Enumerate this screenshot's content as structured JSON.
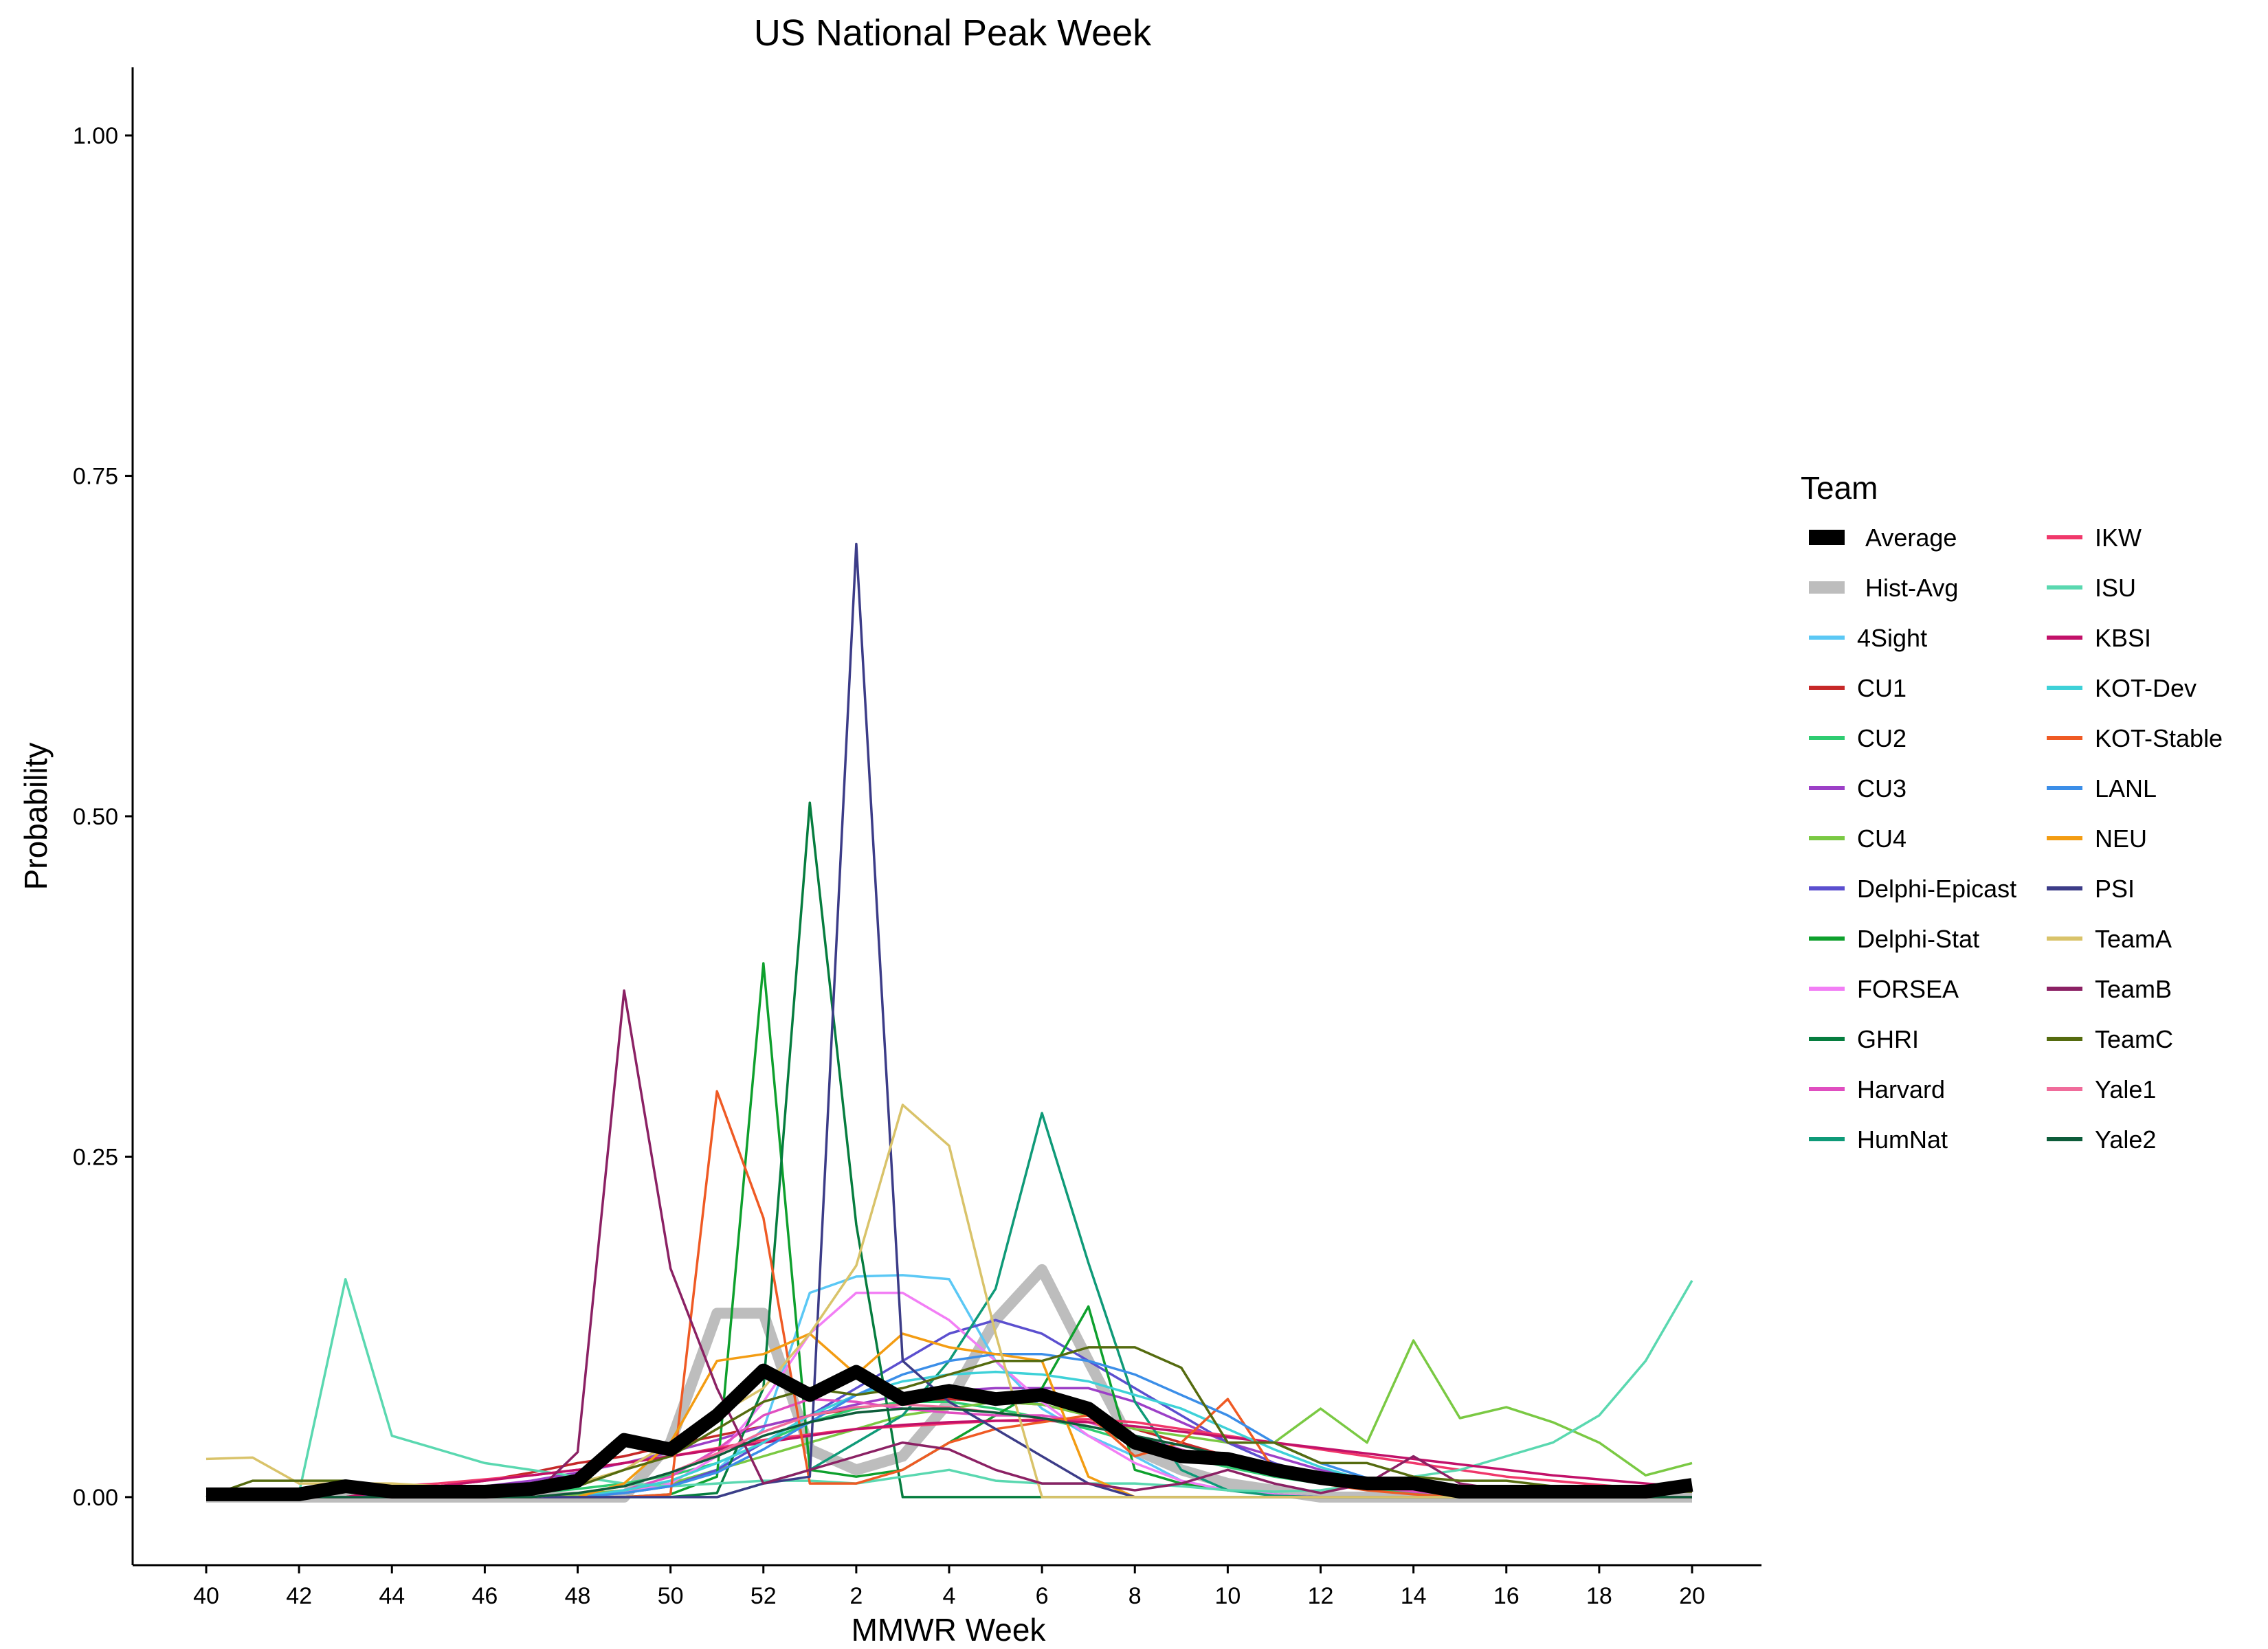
{
  "chart_data": {
    "type": "line",
    "title": "US National Peak Week",
    "xlabel": "MMWR Week",
    "ylabel": "Probability",
    "ylim": [
      -0.05,
      1.05
    ],
    "y_ticks": [
      0,
      0.25,
      0.5,
      0.75,
      1.0
    ],
    "y_tick_labels": [
      "0.00",
      "0.25",
      "0.50",
      "0.75",
      "1.00"
    ],
    "x": [
      "40",
      "41",
      "42",
      "43",
      "44",
      "45",
      "46",
      "47",
      "48",
      "49",
      "50",
      "51",
      "52",
      "1",
      "2",
      "3",
      "4",
      "5",
      "6",
      "7",
      "8",
      "9",
      "10",
      "11",
      "12",
      "13",
      "14",
      "15",
      "16",
      "17",
      "18",
      "19",
      "20"
    ],
    "x_tick_labels": [
      "40",
      "42",
      "44",
      "46",
      "48",
      "50",
      "52",
      "2",
      "4",
      "6",
      "8",
      "10",
      "12",
      "14",
      "16",
      "18",
      "20"
    ],
    "grid": false,
    "legend_title": "Team",
    "legend_position": "right",
    "series": [
      {
        "name": "Average",
        "color": "#000000",
        "emphasis": "thick",
        "values": [
          0.002,
          0.002,
          0.002,
          0.008,
          0.004,
          0.004,
          0.004,
          0.006,
          0.012,
          0.042,
          0.035,
          0.06,
          0.093,
          0.075,
          0.092,
          0.072,
          0.078,
          0.072,
          0.075,
          0.065,
          0.04,
          0.03,
          0.028,
          0.02,
          0.014,
          0.01,
          0.01,
          0.004,
          0.004,
          0.004,
          0.004,
          0.004,
          0.009
        ]
      },
      {
        "name": "Hist-Avg",
        "color": "#bdbdbd",
        "emphasis": "medium",
        "values": [
          0,
          0,
          0,
          0,
          0,
          0,
          0,
          0,
          0,
          0,
          0.04,
          0.135,
          0.135,
          0.035,
          0.02,
          0.03,
          0.07,
          0.13,
          0.167,
          0.1,
          0.035,
          0.02,
          0.01,
          0.005,
          0,
          0,
          0,
          0,
          0,
          0,
          0,
          0,
          0
        ]
      },
      {
        "name": "4Sight",
        "color": "#5bc8f5",
        "values": [
          0,
          0,
          0,
          0,
          0,
          0,
          0,
          0,
          0,
          0.005,
          0.01,
          0.02,
          0.05,
          0.15,
          0.162,
          0.163,
          0.16,
          0.1,
          0.065,
          0.045,
          0.03,
          0.012,
          0.005,
          0.002,
          0,
          0,
          0,
          0,
          0,
          0,
          0,
          0,
          0
        ]
      },
      {
        "name": "CU1",
        "color": "#c62828",
        "values": [
          0,
          0,
          0,
          0,
          0.005,
          0.008,
          0.012,
          0.018,
          0.025,
          0.03,
          0.038,
          0.045,
          0.052,
          0.06,
          0.065,
          0.07,
          0.072,
          0.07,
          0.068,
          0.06,
          0.05,
          0.04,
          0.03,
          0.022,
          0.015,
          0.01,
          0.006,
          0.004,
          0.002,
          0.001,
          0,
          0,
          0
        ]
      },
      {
        "name": "CU2",
        "color": "#2ecc71",
        "values": [
          0,
          0,
          0,
          0,
          0,
          0,
          0,
          0.003,
          0.006,
          0.01,
          0.016,
          0.025,
          0.04,
          0.055,
          0.065,
          0.07,
          0.07,
          0.065,
          0.058,
          0.05,
          0.04,
          0.03,
          0.022,
          0.015,
          0.01,
          0.006,
          0.003,
          0.002,
          0.001,
          0,
          0,
          0,
          0
        ]
      },
      {
        "name": "CU3",
        "color": "#9c3fc7",
        "values": [
          0,
          0,
          0,
          0,
          0.003,
          0.005,
          0.008,
          0.012,
          0.018,
          0.025,
          0.033,
          0.042,
          0.052,
          0.06,
          0.068,
          0.075,
          0.078,
          0.08,
          0.08,
          0.08,
          0.07,
          0.055,
          0.04,
          0.03,
          0.02,
          0.012,
          0.008,
          0.004,
          0.002,
          0.001,
          0,
          0,
          0
        ]
      },
      {
        "name": "CU4",
        "color": "#7ac943",
        "values": [
          0,
          0,
          0,
          0,
          0,
          0,
          0,
          0,
          0.002,
          0.005,
          0.01,
          0.02,
          0.03,
          0.04,
          0.05,
          0.06,
          0.065,
          0.07,
          0.068,
          0.06,
          0.05,
          0.045,
          0.04,
          0.04,
          0.065,
          0.04,
          0.115,
          0.058,
          0.066,
          0.055,
          0.04,
          0.016,
          0.025
        ]
      },
      {
        "name": "Delphi-Epicast",
        "color": "#5b4fcf",
        "values": [
          0,
          0,
          0,
          0,
          0,
          0,
          0,
          0,
          0,
          0.003,
          0.008,
          0.02,
          0.04,
          0.06,
          0.08,
          0.1,
          0.12,
          0.13,
          0.12,
          0.1,
          0.08,
          0.06,
          0.04,
          0.025,
          0.015,
          0.008,
          0.004,
          0.002,
          0.001,
          0,
          0,
          0,
          0
        ]
      },
      {
        "name": "Delphi-Stat",
        "color": "#0ea02d",
        "values": [
          0,
          0,
          0,
          0,
          0,
          0,
          0,
          0,
          0,
          0,
          0.002,
          0.015,
          0.392,
          0.02,
          0.015,
          0.02,
          0.04,
          0.06,
          0.08,
          0.14,
          0.02,
          0.01,
          0.005,
          0.002,
          0,
          0,
          0,
          0,
          0,
          0,
          0,
          0,
          0
        ]
      },
      {
        "name": "FORSEA",
        "color": "#f27ef5",
        "values": [
          0,
          0,
          0,
          0,
          0,
          0,
          0,
          0,
          0,
          0.003,
          0.01,
          0.03,
          0.07,
          0.12,
          0.15,
          0.15,
          0.13,
          0.1,
          0.07,
          0.045,
          0.025,
          0.012,
          0.005,
          0.002,
          0,
          0,
          0,
          0,
          0,
          0,
          0,
          0,
          0
        ]
      },
      {
        "name": "GHRI",
        "color": "#067d3f",
        "values": [
          0,
          0,
          0,
          0,
          0,
          0,
          0,
          0,
          0,
          0,
          0,
          0.003,
          0.08,
          0.51,
          0.2,
          0,
          0,
          0,
          0,
          0,
          0,
          0,
          0,
          0,
          0,
          0,
          0,
          0,
          0,
          0,
          0,
          0,
          0
        ]
      },
      {
        "name": "Harvard",
        "color": "#e04ec0",
        "values": [
          0,
          0,
          0,
          0,
          0,
          0,
          0,
          0,
          0,
          0.005,
          0.015,
          0.035,
          0.06,
          0.072,
          0.07,
          0.065,
          0.062,
          0.06,
          0.06,
          0.055,
          0.045,
          0.035,
          0.025,
          0.018,
          0.012,
          0.008,
          0.004,
          0.002,
          0.001,
          0,
          0,
          0,
          0
        ]
      },
      {
        "name": "HumNat",
        "color": "#0f9a78",
        "values": [
          0,
          0,
          0,
          0,
          0,
          0,
          0,
          0,
          0,
          0,
          0,
          0,
          0.01,
          0.02,
          0.04,
          0.06,
          0.1,
          0.153,
          0.282,
          0.172,
          0.07,
          0.02,
          0.005,
          0.001,
          0,
          0,
          0,
          0,
          0,
          0,
          0,
          0,
          0
        ]
      },
      {
        "name": "IKW",
        "color": "#f0386b",
        "values": [
          0,
          0,
          0,
          0.005,
          0.008,
          0.01,
          0.013,
          0.016,
          0.02,
          0.025,
          0.03,
          0.036,
          0.042,
          0.046,
          0.05,
          0.052,
          0.054,
          0.056,
          0.057,
          0.057,
          0.055,
          0.05,
          0.045,
          0.04,
          0.035,
          0.03,
          0.025,
          0.02,
          0.015,
          0.012,
          0.009,
          0.006,
          0.004
        ]
      },
      {
        "name": "ISU",
        "color": "#5ad8b0",
        "values": [
          0.003,
          0.003,
          0.003,
          0.16,
          0.045,
          0.035,
          0.025,
          0.02,
          0.015,
          0.01,
          0.008,
          0.01,
          0.012,
          0.012,
          0.01,
          0.015,
          0.02,
          0.012,
          0.01,
          0.01,
          0.01,
          0.008,
          0.005,
          0.004,
          0.005,
          0.01,
          0.015,
          0.02,
          0.03,
          0.04,
          0.06,
          0.1,
          0.159
        ]
      },
      {
        "name": "KBSI",
        "color": "#c21169",
        "values": [
          0,
          0,
          0,
          0,
          0.005,
          0.008,
          0.012,
          0.016,
          0.02,
          0.025,
          0.03,
          0.035,
          0.04,
          0.045,
          0.05,
          0.053,
          0.055,
          0.056,
          0.056,
          0.055,
          0.052,
          0.048,
          0.044,
          0.04,
          0.036,
          0.032,
          0.028,
          0.024,
          0.02,
          0.016,
          0.013,
          0.01,
          0.007
        ]
      },
      {
        "name": "KOT-Dev",
        "color": "#3ed1d8",
        "values": [
          0,
          0,
          0,
          0,
          0,
          0,
          0,
          0,
          0,
          0.005,
          0.012,
          0.025,
          0.04,
          0.06,
          0.075,
          0.085,
          0.09,
          0.092,
          0.09,
          0.085,
          0.075,
          0.065,
          0.05,
          0.035,
          0.022,
          0.012,
          0.006,
          0.003,
          0.001,
          0,
          0,
          0,
          0
        ]
      },
      {
        "name": "KOT-Stable",
        "color": "#ef5a24",
        "values": [
          0,
          0,
          0,
          0,
          0,
          0,
          0,
          0,
          0,
          0,
          0.002,
          0.298,
          0.205,
          0.01,
          0.01,
          0.02,
          0.04,
          0.05,
          0.055,
          0.06,
          0.03,
          0.04,
          0.072,
          0.02,
          0.01,
          0.005,
          0.002,
          0,
          0,
          0,
          0,
          0,
          0
        ]
      },
      {
        "name": "LANL",
        "color": "#3b8ee8",
        "values": [
          0,
          0,
          0,
          0,
          0,
          0,
          0,
          0,
          0,
          0.003,
          0.008,
          0.018,
          0.035,
          0.055,
          0.075,
          0.09,
          0.1,
          0.105,
          0.105,
          0.1,
          0.09,
          0.075,
          0.06,
          0.04,
          0.025,
          0.014,
          0.007,
          0.003,
          0.001,
          0,
          0,
          0,
          0
        ]
      },
      {
        "name": "NEU",
        "color": "#f39c12",
        "values": [
          0,
          0,
          0,
          0,
          0,
          0,
          0,
          0,
          0,
          0.01,
          0.04,
          0.1,
          0.105,
          0.12,
          0.09,
          0.12,
          0.11,
          0.105,
          0.1,
          0.015,
          0,
          0,
          0,
          0,
          0,
          0,
          0,
          0,
          0,
          0,
          0,
          0,
          0
        ]
      },
      {
        "name": "PSI",
        "color": "#3c3c88",
        "values": [
          0,
          0,
          0,
          0,
          0,
          0,
          0,
          0,
          0,
          0,
          0,
          0,
          0.01,
          0.015,
          0.7,
          0.1,
          0.07,
          0.05,
          0.03,
          0.01,
          0,
          0,
          0,
          0,
          0,
          0,
          0,
          0,
          0,
          0,
          0,
          0,
          0
        ]
      },
      {
        "name": "TeamA",
        "color": "#d9c36a",
        "values": [
          0.028,
          0.029,
          0.01,
          0.01,
          0.01,
          0.008,
          0.006,
          0.005,
          0.01,
          0.02,
          0.04,
          0.06,
          0.08,
          0.12,
          0.17,
          0.288,
          0.258,
          0.12,
          0,
          0,
          0,
          0,
          0,
          0,
          0,
          0,
          0,
          0,
          0,
          0,
          0,
          0,
          0
        ]
      },
      {
        "name": "TeamB",
        "color": "#8b2164",
        "values": [
          0,
          0,
          0,
          0,
          0,
          0,
          0,
          0,
          0.033,
          0.372,
          0.168,
          0.08,
          0.01,
          0.02,
          0.03,
          0.04,
          0.035,
          0.02,
          0.01,
          0.01,
          0.005,
          0.01,
          0.02,
          0.01,
          0.003,
          0.01,
          0.03,
          0.01,
          0.005,
          0.003,
          0.001,
          0,
          0
        ]
      },
      {
        "name": "TeamC",
        "color": "#556b0f",
        "values": [
          0,
          0.012,
          0.012,
          0.012,
          0,
          0,
          0.008,
          0.008,
          0.008,
          0.02,
          0.03,
          0.05,
          0.07,
          0.08,
          0.075,
          0.08,
          0.09,
          0.1,
          0.1,
          0.11,
          0.11,
          0.095,
          0.04,
          0.04,
          0.025,
          0.025,
          0.015,
          0.012,
          0.012,
          0.008,
          0.005,
          0.004,
          0.004
        ]
      },
      {
        "name": "Yale1",
        "color": "#f06c9b",
        "values": [
          0,
          0,
          0,
          0,
          0,
          0,
          0,
          0,
          0.003,
          0.008,
          0.018,
          0.032,
          0.048,
          0.06,
          0.066,
          0.068,
          0.066,
          0.062,
          0.058,
          0.052,
          0.045,
          0.038,
          0.03,
          0.022,
          0.015,
          0.01,
          0.006,
          0.003,
          0.001,
          0,
          0,
          0,
          0
        ]
      },
      {
        "name": "Yale2",
        "color": "#0d5c3a",
        "values": [
          0,
          0,
          0,
          0,
          0,
          0,
          0,
          0,
          0.003,
          0.008,
          0.018,
          0.03,
          0.045,
          0.055,
          0.062,
          0.065,
          0.065,
          0.062,
          0.058,
          0.052,
          0.045,
          0.038,
          0.03,
          0.022,
          0.015,
          0.01,
          0.006,
          0.003,
          0.001,
          0,
          0,
          0,
          0
        ]
      }
    ]
  }
}
